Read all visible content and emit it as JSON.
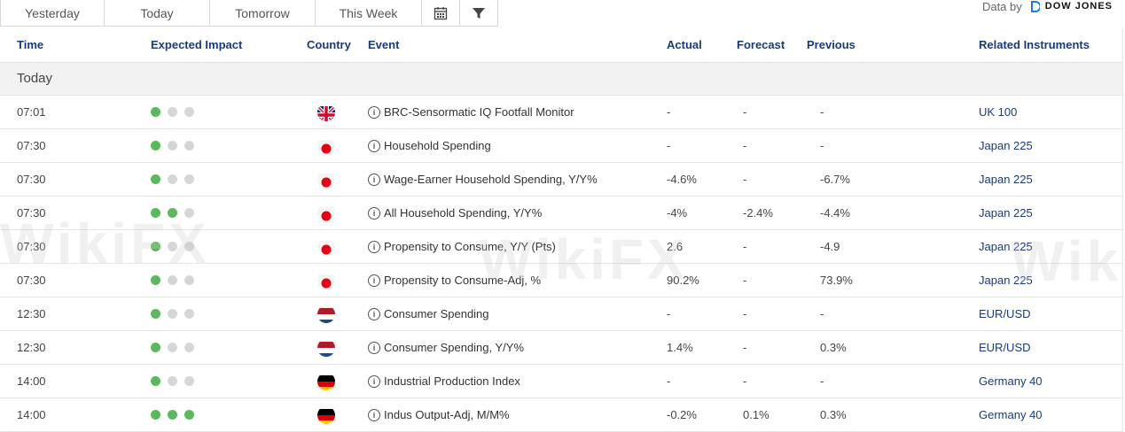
{
  "tabs": [
    {
      "label": "Yesterday"
    },
    {
      "label": "Today"
    },
    {
      "label": "Tomorrow"
    },
    {
      "label": "This Week"
    }
  ],
  "icons": {
    "calendar": "calendar-icon",
    "filter": "filter-icon"
  },
  "data_by": {
    "label": "Data by",
    "provider": "DOW JONES"
  },
  "columns": {
    "time": "Time",
    "impact": "Expected Impact",
    "country": "Country",
    "event": "Event",
    "actual": "Actual",
    "forecast": "Forecast",
    "previous": "Previous",
    "instruments": "Related Instruments"
  },
  "section": {
    "label": "Today"
  },
  "watermark": "WikiFX",
  "colors": {
    "header_text": "#1a3a7a",
    "impact_on": "#5cb85c",
    "impact_off": "#d6d6d6"
  },
  "rows": [
    {
      "time": "07:01",
      "impact": 1,
      "country": "uk",
      "event": "BRC-Sensormatic IQ Footfall Monitor",
      "actual": "-",
      "forecast": "-",
      "previous": "-",
      "instrument": "UK 100"
    },
    {
      "time": "07:30",
      "impact": 1,
      "country": "jp",
      "event": "Household Spending",
      "actual": "-",
      "forecast": "-",
      "previous": "-",
      "instrument": "Japan 225"
    },
    {
      "time": "07:30",
      "impact": 1,
      "country": "jp",
      "event": "Wage-Earner Household Spending, Y/Y%",
      "actual": "-4.6%",
      "forecast": "-",
      "previous": "-6.7%",
      "instrument": "Japan 225"
    },
    {
      "time": "07:30",
      "impact": 2,
      "country": "jp",
      "event": "All Household Spending, Y/Y%",
      "actual": "-4%",
      "forecast": "-2.4%",
      "previous": "-4.4%",
      "instrument": "Japan 225"
    },
    {
      "time": "07:30",
      "impact": 1,
      "country": "jp",
      "event": "Propensity to Consume, Y/Y (Pts)",
      "actual": "2.6",
      "forecast": "-",
      "previous": "-4.9",
      "instrument": "Japan 225"
    },
    {
      "time": "07:30",
      "impact": 1,
      "country": "jp",
      "event": "Propensity to Consume-Adj, %",
      "actual": "90.2%",
      "forecast": "-",
      "previous": "73.9%",
      "instrument": "Japan 225"
    },
    {
      "time": "12:30",
      "impact": 1,
      "country": "nl",
      "event": "Consumer Spending",
      "actual": "-",
      "forecast": "-",
      "previous": "-",
      "instrument": "EUR/USD"
    },
    {
      "time": "12:30",
      "impact": 1,
      "country": "nl",
      "event": "Consumer Spending, Y/Y%",
      "actual": "1.4%",
      "forecast": "-",
      "previous": "0.3%",
      "instrument": "EUR/USD"
    },
    {
      "time": "14:00",
      "impact": 1,
      "country": "de",
      "event": "Industrial Production Index",
      "actual": "-",
      "forecast": "-",
      "previous": "-",
      "instrument": "Germany 40"
    },
    {
      "time": "14:00",
      "impact": 3,
      "country": "de",
      "event": "Indus Output-Adj, M/M%",
      "actual": "-0.2%",
      "forecast": "0.1%",
      "previous": "0.3%",
      "instrument": "Germany 40"
    }
  ]
}
